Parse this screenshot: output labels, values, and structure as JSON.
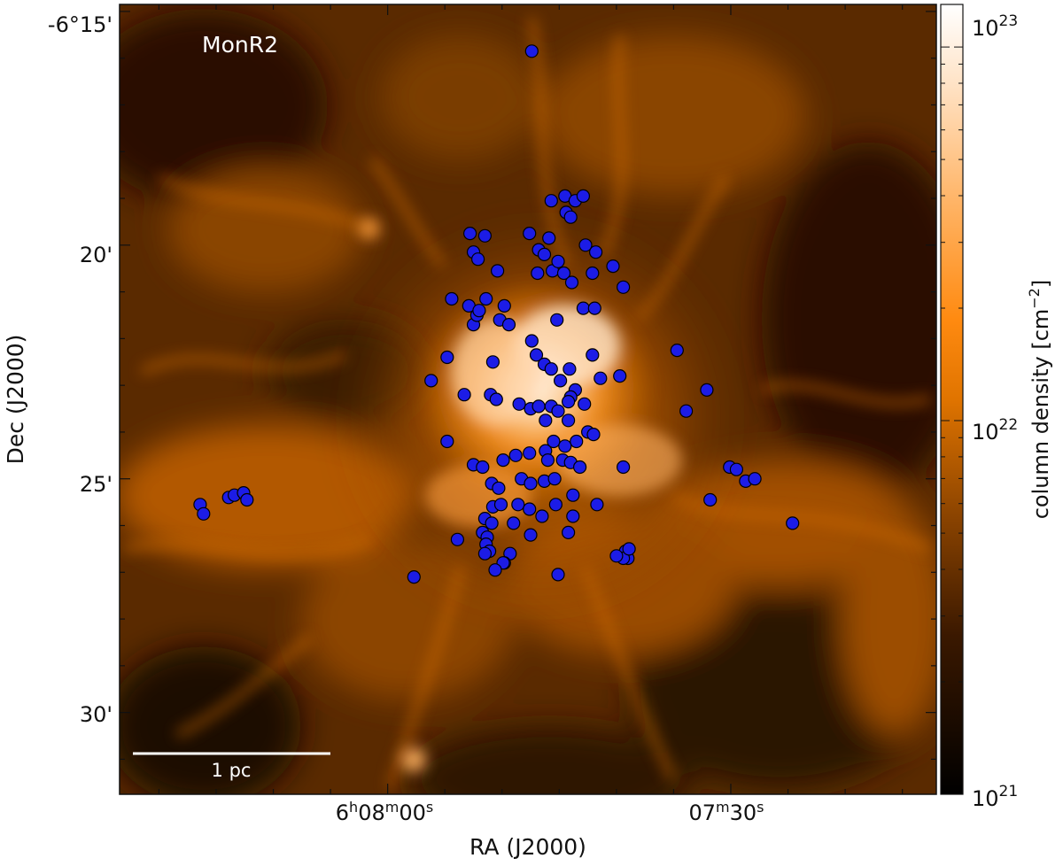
{
  "chart_data": {
    "type": "scatter",
    "title": "",
    "field_label": "MonR2",
    "xlabel": "RA (J2000)",
    "ylabel": "Dec (J2000)",
    "x_unit": "arcsec offset",
    "y_unit": "arcmin",
    "xlim": [
      23.44,
      -47.97
    ],
    "ylim": [
      -31.75,
      -14.85
    ],
    "x_tick_labels": [
      {
        "value": 0,
        "main": "6",
        "sup1": "h",
        "mid": "08",
        "sup2": "m",
        "tail": "00",
        "sup3": "s"
      },
      {
        "value": -30,
        "main": "",
        "sup1": "",
        "mid": "07",
        "sup2": "m",
        "tail": "30",
        "sup3": "s"
      }
    ],
    "y_tick_labels": [
      {
        "value": -15,
        "text": "-6°15'"
      },
      {
        "value": -20,
        "text": "20'"
      },
      {
        "value": -25,
        "text": "25'"
      },
      {
        "value": -30,
        "text": "30'"
      }
    ],
    "colorbar": {
      "label": "column density [cm",
      "label_sup": "−2",
      "label_end": "]",
      "scale": "log",
      "range": [
        1e+21,
        1.3e+23
      ],
      "ticks": [
        {
          "value": 1e+21,
          "base": "10",
          "exp": "21"
        },
        {
          "value": 1e+22,
          "base": "10",
          "exp": "22"
        },
        {
          "value": 1e+23,
          "base": "10",
          "exp": "23"
        }
      ],
      "colormap": "black-orange-white"
    },
    "scale_bar": {
      "label": "1 pc"
    },
    "marker_color": "#1c1ce6",
    "series": [
      {
        "points": [
          [
            -12.6,
            -15.85
          ],
          [
            -14.3,
            -19.05
          ],
          [
            -15.5,
            -18.95
          ],
          [
            -16.4,
            -19.05
          ],
          [
            -17.1,
            -18.95
          ],
          [
            -15.6,
            -19.3
          ],
          [
            -16.0,
            -19.4
          ],
          [
            -7.2,
            -19.75
          ],
          [
            -8.5,
            -19.8
          ],
          [
            -12.4,
            -19.75
          ],
          [
            -14.1,
            -19.85
          ],
          [
            -13.2,
            -20.1
          ],
          [
            -13.7,
            -20.2
          ],
          [
            -17.3,
            -20.0
          ],
          [
            -18.2,
            -20.15
          ],
          [
            -19.7,
            -20.45
          ],
          [
            -7.5,
            -20.15
          ],
          [
            -7.9,
            -20.3
          ],
          [
            -9.6,
            -20.55
          ],
          [
            -13.1,
            -20.6
          ],
          [
            -14.4,
            -20.55
          ],
          [
            -14.9,
            -20.35
          ],
          [
            -15.4,
            -20.6
          ],
          [
            -16.1,
            -20.8
          ],
          [
            -17.9,
            -20.6
          ],
          [
            -20.6,
            -20.9
          ],
          [
            -5.6,
            -21.15
          ],
          [
            -7.1,
            -21.3
          ],
          [
            -8.6,
            -21.15
          ],
          [
            -10.2,
            -21.3
          ],
          [
            -7.5,
            -21.7
          ],
          [
            -7.8,
            -21.5
          ],
          [
            -8.0,
            -21.4
          ],
          [
            -9.8,
            -21.6
          ],
          [
            -10.6,
            -21.7
          ],
          [
            -14.8,
            -21.6
          ],
          [
            -17.1,
            -21.35
          ],
          [
            -18.1,
            -21.35
          ],
          [
            -12.6,
            -22.05
          ],
          [
            -13.0,
            -22.35
          ],
          [
            -13.7,
            -22.55
          ],
          [
            -14.3,
            -22.65
          ],
          [
            -15.1,
            -22.9
          ],
          [
            -15.9,
            -22.65
          ],
          [
            -17.9,
            -22.35
          ],
          [
            -5.2,
            -22.4
          ],
          [
            -9.2,
            -22.5
          ],
          [
            -25.3,
            -22.25
          ],
          [
            -20.3,
            -22.8
          ],
          [
            -18.6,
            -22.85
          ],
          [
            -3.8,
            -22.9
          ],
          [
            -16.4,
            -23.1
          ],
          [
            -16.0,
            -23.25
          ],
          [
            -15.8,
            -23.35
          ],
          [
            -9.0,
            -23.2
          ],
          [
            -9.5,
            -23.3
          ],
          [
            -6.7,
            -23.2
          ],
          [
            -27.9,
            -23.1
          ],
          [
            -17.2,
            -23.4
          ],
          [
            -11.5,
            -23.4
          ],
          [
            -12.5,
            -23.5
          ],
          [
            -13.2,
            -23.45
          ],
          [
            -14.3,
            -23.45
          ],
          [
            -14.9,
            -23.55
          ],
          [
            -13.8,
            -23.75
          ],
          [
            -15.8,
            -23.75
          ],
          [
            -26.1,
            -23.55
          ],
          [
            -17.5,
            -24.0
          ],
          [
            -18.0,
            -24.05
          ],
          [
            -16.5,
            -24.2
          ],
          [
            -14.5,
            -24.2
          ],
          [
            -13.8,
            -24.4
          ],
          [
            -12.4,
            -24.45
          ],
          [
            -11.2,
            -24.5
          ],
          [
            -10.1,
            -24.6
          ],
          [
            -5.2,
            -24.2
          ],
          [
            -15.5,
            -24.3
          ],
          [
            -14.0,
            -24.6
          ],
          [
            -15.3,
            -24.6
          ],
          [
            -16.0,
            -24.65
          ],
          [
            -16.8,
            -24.75
          ],
          [
            -20.6,
            -24.75
          ],
          [
            -7.5,
            -24.7
          ],
          [
            -8.3,
            -24.75
          ],
          [
            -29.9,
            -24.75
          ],
          [
            -30.5,
            -24.8
          ],
          [
            -31.3,
            -25.05
          ],
          [
            -32.1,
            -25.0
          ],
          [
            -9.1,
            -25.1
          ],
          [
            -11.7,
            -25.0
          ],
          [
            -12.5,
            -25.1
          ],
          [
            -13.7,
            -25.05
          ],
          [
            -14.6,
            -25.0
          ],
          [
            -16.2,
            -25.35
          ],
          [
            -9.7,
            -25.2
          ],
          [
            -9.2,
            -25.6
          ],
          [
            -9.9,
            -25.55
          ],
          [
            -11.4,
            -25.55
          ],
          [
            -12.4,
            -25.65
          ],
          [
            -14.7,
            -25.55
          ],
          [
            -13.5,
            -25.8
          ],
          [
            -16.2,
            -25.8
          ],
          [
            -18.3,
            -25.55
          ],
          [
            -28.2,
            -25.45
          ],
          [
            -8.5,
            -25.85
          ],
          [
            -9.1,
            -25.95
          ],
          [
            -8.3,
            -26.15
          ],
          [
            -8.7,
            -26.25
          ],
          [
            -11.0,
            -25.95
          ],
          [
            -6.1,
            -26.3
          ],
          [
            -8.6,
            -26.4
          ],
          [
            -8.9,
            -26.55
          ],
          [
            -8.5,
            -26.6
          ],
          [
            -10.7,
            -26.6
          ],
          [
            -12.5,
            -26.2
          ],
          [
            -15.8,
            -26.15
          ],
          [
            -20.8,
            -26.55
          ],
          [
            -21.0,
            -26.7
          ],
          [
            -20.6,
            -26.7
          ],
          [
            -10.2,
            -26.8
          ],
          [
            -10.1,
            -26.8
          ],
          [
            -9.4,
            -26.95
          ],
          [
            -2.3,
            -27.1
          ],
          [
            -14.9,
            -27.05
          ],
          [
            -35.4,
            -25.95
          ],
          [
            -21.1,
            -26.5
          ],
          [
            -20.0,
            -26.65
          ],
          [
            16.4,
            -25.55
          ],
          [
            16.1,
            -25.75
          ],
          [
            13.9,
            -25.4
          ],
          [
            13.4,
            -25.35
          ],
          [
            12.6,
            -25.3
          ],
          [
            12.3,
            -25.45
          ]
        ]
      }
    ]
  }
}
